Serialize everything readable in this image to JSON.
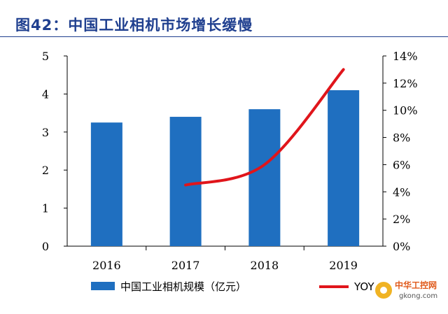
{
  "figure": {
    "label": "图42：",
    "title": "中国工业相机市场增长缓慢"
  },
  "chart_data": {
    "type": "bar",
    "categories": [
      "2016",
      "2017",
      "2018",
      "2019"
    ],
    "series": [
      {
        "name": "中国工业相机规模（亿元）",
        "type": "bar",
        "axis": "left",
        "color": "#1f6fc0",
        "values": [
          3.25,
          3.4,
          3.6,
          4.1
        ]
      },
      {
        "name": "YOY",
        "type": "line",
        "axis": "right",
        "color": "#e0151b",
        "values": [
          null,
          4.5,
          6.0,
          13.0
        ]
      }
    ],
    "y_left": {
      "ylim": [
        0,
        5
      ],
      "ticks": [
        "0",
        "1",
        "2",
        "3",
        "4",
        "5"
      ]
    },
    "y_right": {
      "ylim": [
        0,
        14
      ],
      "ticks": [
        "0%",
        "2%",
        "4%",
        "6%",
        "8%",
        "10%",
        "12%",
        "14%"
      ]
    },
    "grid": false,
    "legend": "bottom"
  },
  "watermark": {
    "text": "中华工控网",
    "url_text": "gkong.com"
  }
}
